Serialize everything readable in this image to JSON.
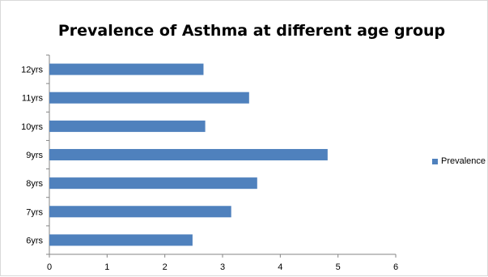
{
  "chart_data": {
    "type": "bar",
    "orientation": "horizontal",
    "title": "Prevalence of Asthma at different age group",
    "categories": [
      "6yrs",
      "7yrs",
      "8yrs",
      "9yrs",
      "10yrs",
      "11yrs",
      "12yrs"
    ],
    "series": [
      {
        "name": "Prevalence",
        "values": [
          2.48,
          3.15,
          3.6,
          4.82,
          2.7,
          3.46,
          2.67
        ],
        "color": "#4f81bd"
      }
    ],
    "xlim": [
      0,
      6
    ],
    "xticks": [
      "0",
      "1",
      "2",
      "3",
      "4",
      "5",
      "6"
    ],
    "xlabel": "",
    "ylabel": "",
    "grid": false,
    "legend_position": "right"
  }
}
